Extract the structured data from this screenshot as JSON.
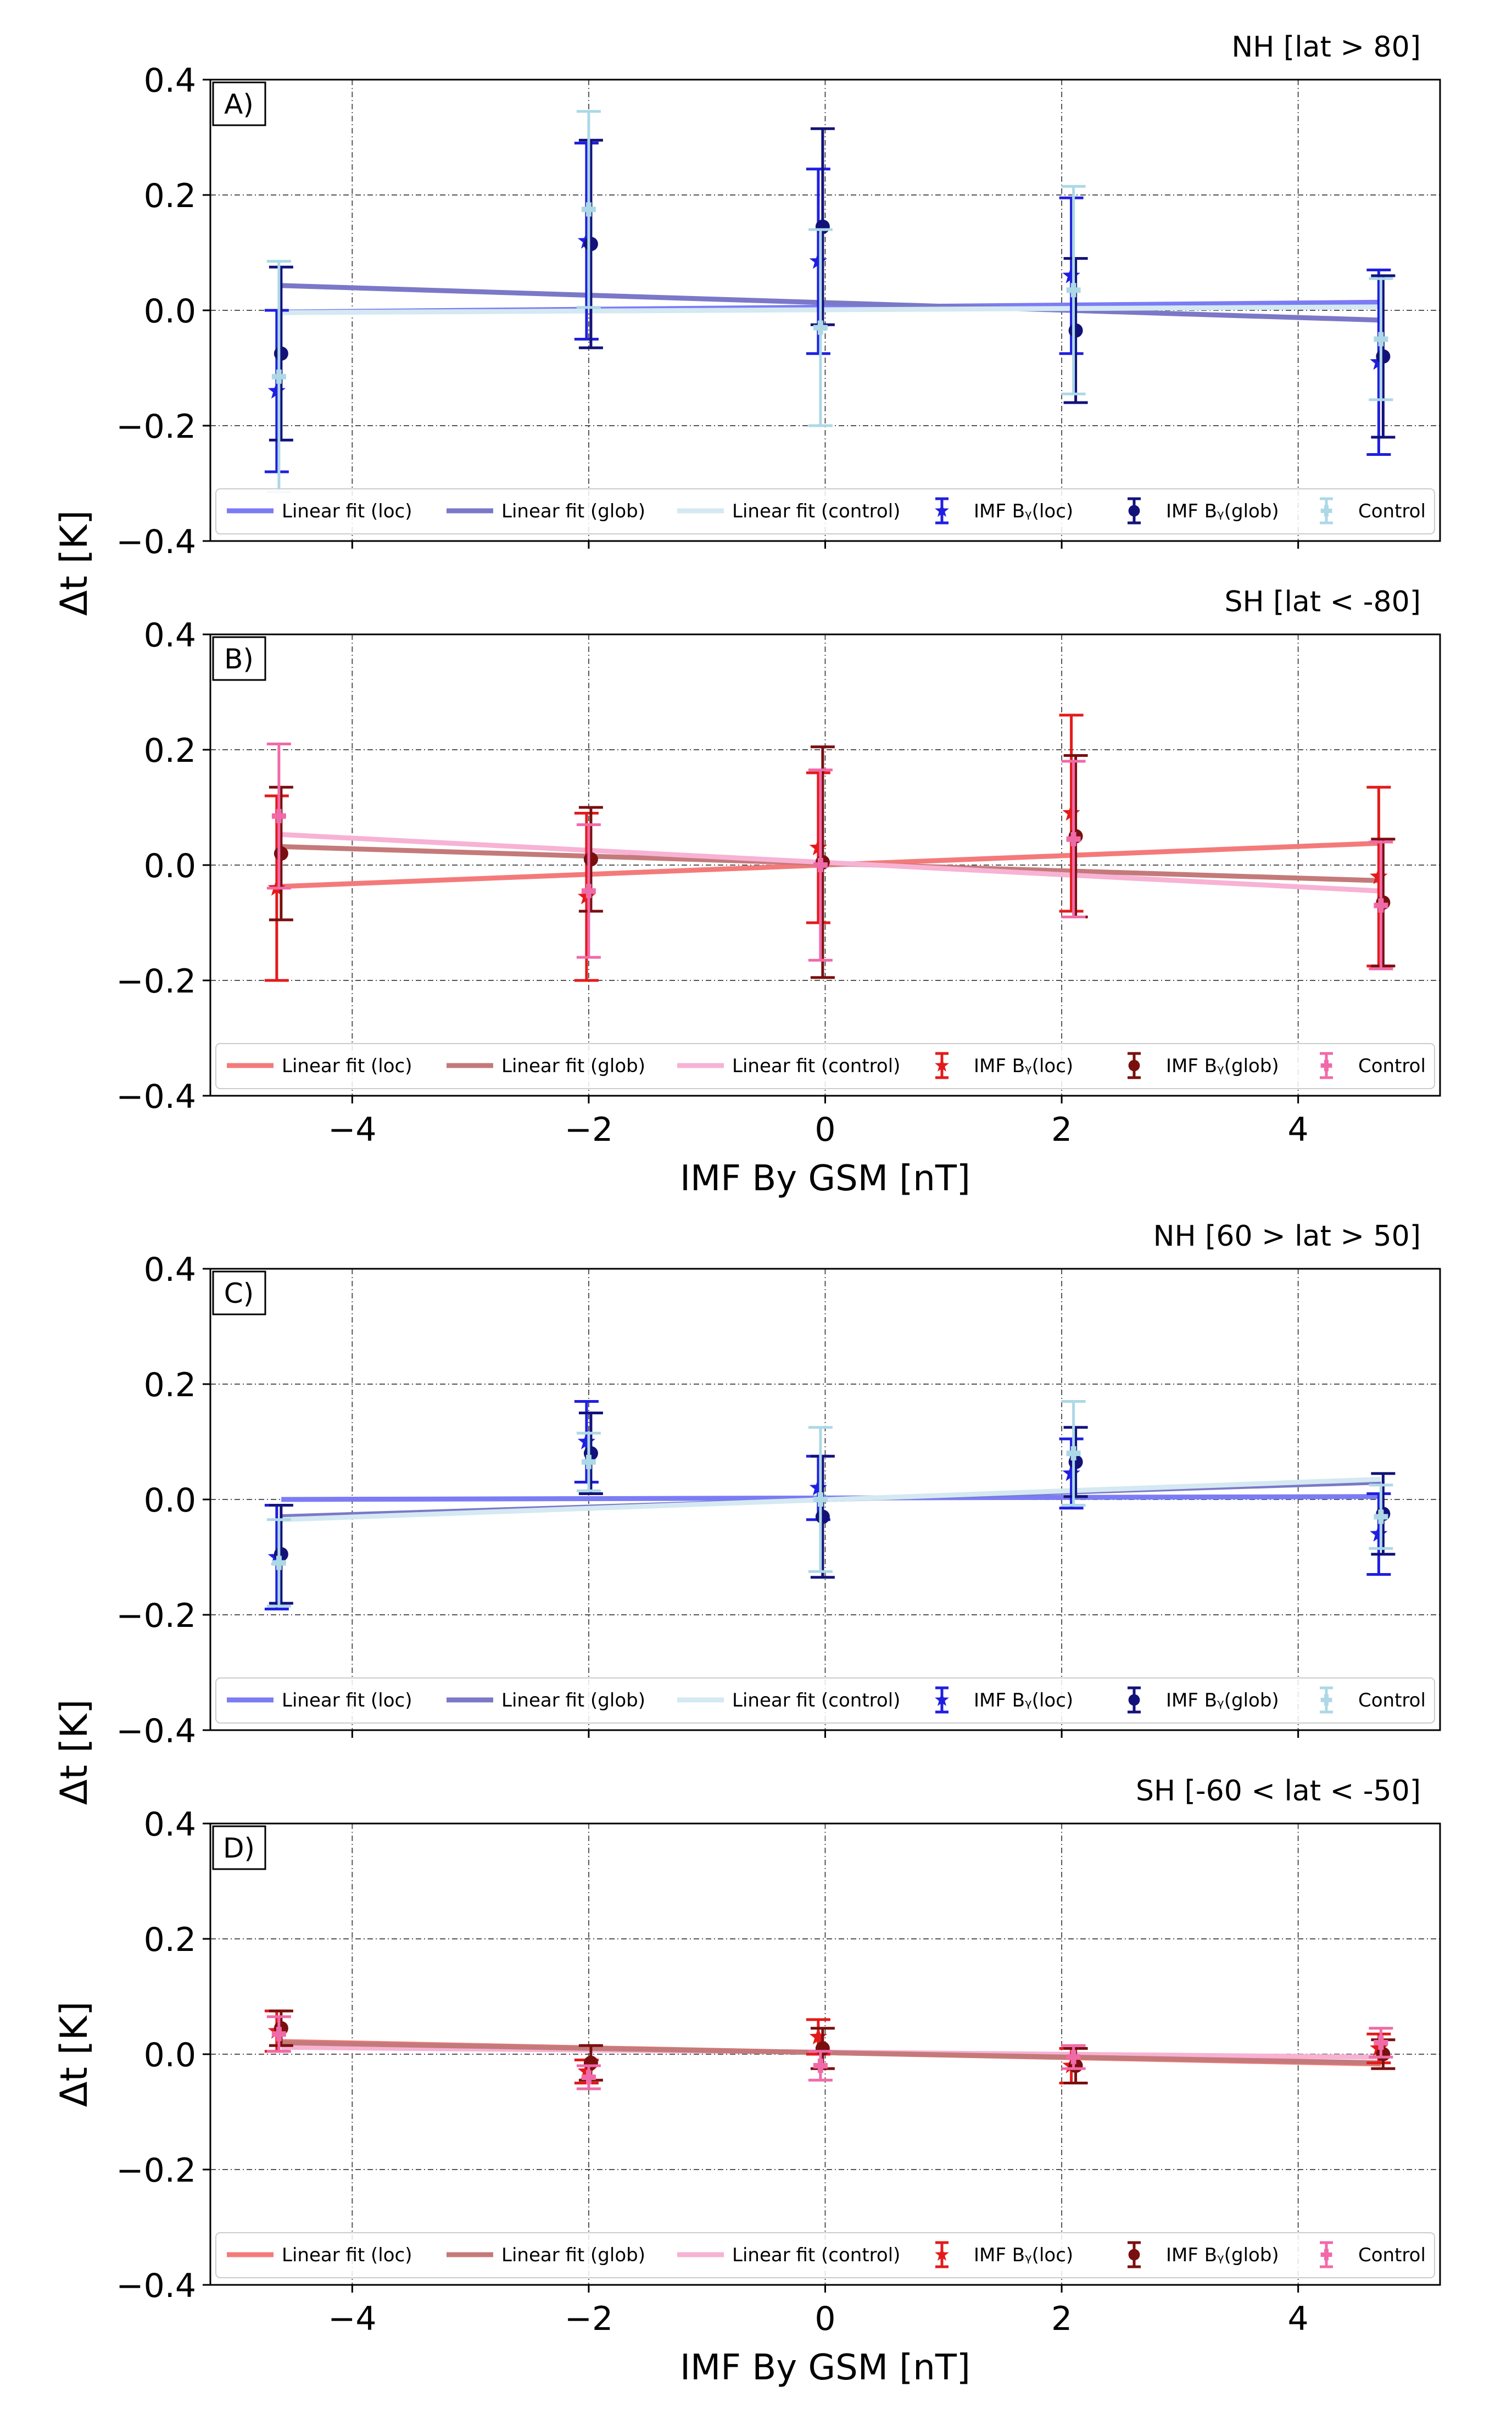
{
  "chart_data": [
    {
      "type": "scatter",
      "panel_label": "A)",
      "title": "NH [lat > 80]",
      "xlabel": "",
      "ylabel": "Δt [K]",
      "xlim": [
        -5.2,
        5.2
      ],
      "ylim": [
        -0.4,
        0.4
      ],
      "x_ticks": [],
      "x_tick_labels": [],
      "y_ticks": [
        -0.4,
        -0.2,
        0.0,
        0.2,
        0.4
      ],
      "y_tick_labels": [
        "−0.4",
        "−0.2",
        "0.0",
        "0.2",
        "0.4"
      ],
      "grid_x": [
        -4,
        -2,
        0,
        2,
        4
      ],
      "grid": true,
      "legend_position": "bottom",
      "legend": [
        {
          "label": "Linear fit (loc)",
          "kind": "line",
          "color": "#7b7cf5"
        },
        {
          "label": "Linear fit (glob)",
          "kind": "line",
          "color": "#7b78c8"
        },
        {
          "label": "Linear fit (control)",
          "kind": "line",
          "color": "#d4e9f2"
        },
        {
          "label": "IMF Bᵧ(loc)",
          "kind": "star",
          "color": "#1f1fe0"
        },
        {
          "label": "IMF Bᵧ(glob)",
          "kind": "circle",
          "color": "#12127a"
        },
        {
          "label": "Control",
          "kind": "plus",
          "color": "#add8e6"
        }
      ],
      "fits": [
        {
          "name": "Linear fit (loc)",
          "color": "#7b7cf5",
          "x": [
            -4.6,
            4.7
          ],
          "y": [
            -0.003,
            0.014
          ]
        },
        {
          "name": "Linear fit (glob)",
          "color": "#7b78c8",
          "x": [
            -4.6,
            4.7
          ],
          "y": [
            0.043,
            -0.017
          ]
        },
        {
          "name": "Linear fit (control)",
          "color": "#d4e9f2",
          "x": [
            -4.6,
            4.7
          ],
          "y": [
            -0.004,
            0.006
          ]
        }
      ],
      "series": [
        {
          "name": "IMF Bᵧ(loc)",
          "marker": "star",
          "color": "#1f1fe0",
          "x": [
            -4.62,
            -2.0,
            -0.04,
            2.1,
            4.7
          ],
          "y": [
            -0.14,
            0.12,
            0.085,
            0.06,
            -0.09
          ],
          "err": [
            0.14,
            0.17,
            0.16,
            0.135,
            0.16
          ]
        },
        {
          "name": "IMF Bᵧ(glob)",
          "marker": "circle",
          "color": "#12127a",
          "x": [
            -4.62,
            -2.0,
            -0.04,
            2.1,
            4.7
          ],
          "y": [
            -0.075,
            0.115,
            0.145,
            -0.035,
            -0.08
          ],
          "err": [
            0.15,
            0.18,
            0.17,
            0.125,
            0.14
          ]
        },
        {
          "name": "Control",
          "marker": "plus",
          "color": "#add8e6",
          "x": [
            -4.62,
            -2.0,
            -0.04,
            2.1,
            4.7
          ],
          "y": [
            -0.115,
            0.175,
            -0.03,
            0.035,
            -0.05
          ],
          "err": [
            0.2,
            0.17,
            0.17,
            0.18,
            0.105
          ]
        }
      ]
    },
    {
      "type": "scatter",
      "panel_label": "B)",
      "title": "SH [lat < -80]",
      "xlabel": "IMF By GSM [nT]",
      "ylabel": "",
      "xlim": [
        -5.2,
        5.2
      ],
      "ylim": [
        -0.4,
        0.4
      ],
      "x_ticks": [
        -4,
        -2,
        0,
        2,
        4
      ],
      "x_tick_labels": [
        "−4",
        "−2",
        "0",
        "2",
        "4"
      ],
      "y_ticks": [
        -0.4,
        -0.2,
        0.0,
        0.2,
        0.4
      ],
      "y_tick_labels": [
        "−0.4",
        "−0.2",
        "0.0",
        "0.2",
        "0.4"
      ],
      "grid_x": [
        -4,
        -2,
        0,
        2,
        4
      ],
      "grid": true,
      "legend_position": "bottom",
      "legend": [
        {
          "label": "Linear fit (loc)",
          "kind": "line",
          "color": "#f47a7a"
        },
        {
          "label": "Linear fit (glob)",
          "kind": "line",
          "color": "#c47a7a"
        },
        {
          "label": "Linear fit (control)",
          "kind": "line",
          "color": "#f7b2d4"
        },
        {
          "label": "IMF Bᵧ(loc)",
          "kind": "star",
          "color": "#e41a1a"
        },
        {
          "label": "IMF Bᵧ(glob)",
          "kind": "circle",
          "color": "#7a0f0f"
        },
        {
          "label": "Control",
          "kind": "plus",
          "color": "#f06aa8"
        }
      ],
      "fits": [
        {
          "name": "Linear fit (loc)",
          "color": "#f47a7a",
          "x": [
            -4.6,
            4.7
          ],
          "y": [
            -0.037,
            0.038
          ]
        },
        {
          "name": "Linear fit (glob)",
          "color": "#c47a7a",
          "x": [
            -4.6,
            4.7
          ],
          "y": [
            0.032,
            -0.027
          ]
        },
        {
          "name": "Linear fit (control)",
          "color": "#f7b2d4",
          "x": [
            -4.6,
            4.7
          ],
          "y": [
            0.053,
            -0.045
          ]
        }
      ],
      "series": [
        {
          "name": "IMF Bᵧ(loc)",
          "marker": "star",
          "color": "#e41a1a",
          "x": [
            -4.62,
            -2.0,
            -0.04,
            2.1,
            4.7
          ],
          "y": [
            -0.04,
            -0.055,
            0.03,
            0.09,
            -0.02
          ],
          "err": [
            0.16,
            0.145,
            0.13,
            0.17,
            0.155
          ]
        },
        {
          "name": "IMF Bᵧ(glob)",
          "marker": "circle",
          "color": "#7a0f0f",
          "x": [
            -4.62,
            -2.0,
            -0.04,
            2.1,
            4.7
          ],
          "y": [
            0.02,
            0.01,
            0.005,
            0.05,
            -0.065
          ],
          "err": [
            0.115,
            0.09,
            0.2,
            0.14,
            0.11
          ]
        },
        {
          "name": "Control",
          "marker": "plus",
          "color": "#f06aa8",
          "x": [
            -4.62,
            -2.0,
            -0.04,
            2.1,
            4.7
          ],
          "y": [
            0.085,
            -0.045,
            0.0,
            0.045,
            -0.07
          ],
          "err": [
            0.125,
            0.115,
            0.165,
            0.135,
            0.11
          ]
        }
      ]
    },
    {
      "type": "scatter",
      "panel_label": "C)",
      "title": "NH [60 > lat > 50]",
      "xlabel": "",
      "ylabel": "Δt [K]",
      "xlim": [
        -5.2,
        5.2
      ],
      "ylim": [
        -0.4,
        0.4
      ],
      "x_ticks": [],
      "x_tick_labels": [],
      "y_ticks": [
        -0.4,
        -0.2,
        0.0,
        0.2,
        0.4
      ],
      "y_tick_labels": [
        "−0.4",
        "−0.2",
        "0.0",
        "0.2",
        "0.4"
      ],
      "grid_x": [
        -4,
        -2,
        0,
        2,
        4
      ],
      "grid": true,
      "legend_position": "bottom",
      "legend": [
        {
          "label": "Linear fit (loc)",
          "kind": "line",
          "color": "#7b7cf5"
        },
        {
          "label": "Linear fit (glob)",
          "kind": "line",
          "color": "#7b78c8"
        },
        {
          "label": "Linear fit (control)",
          "kind": "line",
          "color": "#d4e9f2"
        },
        {
          "label": "IMF Bᵧ(loc)",
          "kind": "star",
          "color": "#1f1fe0"
        },
        {
          "label": "IMF Bᵧ(glob)",
          "kind": "circle",
          "color": "#12127a"
        },
        {
          "label": "Control",
          "kind": "plus",
          "color": "#add8e6"
        }
      ],
      "fits": [
        {
          "name": "Linear fit (loc)",
          "color": "#7b7cf5",
          "x": [
            -4.6,
            4.7
          ],
          "y": [
            0.0,
            0.005
          ]
        },
        {
          "name": "Linear fit (glob)",
          "color": "#7b78c8",
          "x": [
            -4.6,
            4.7
          ],
          "y": [
            -0.03,
            0.03
          ]
        },
        {
          "name": "Linear fit (control)",
          "color": "#d4e9f2",
          "x": [
            -4.6,
            4.7
          ],
          "y": [
            -0.035,
            0.035
          ]
        }
      ],
      "series": [
        {
          "name": "IMF Bᵧ(loc)",
          "marker": "star",
          "color": "#1f1fe0",
          "x": [
            -4.62,
            -2.0,
            -0.04,
            2.1,
            4.7
          ],
          "y": [
            -0.1,
            0.1,
            0.02,
            0.045,
            -0.06
          ],
          "err": [
            0.09,
            0.07,
            0.055,
            0.06,
            0.07
          ]
        },
        {
          "name": "IMF Bᵧ(glob)",
          "marker": "circle",
          "color": "#12127a",
          "x": [
            -4.62,
            -2.0,
            -0.04,
            2.1,
            4.7
          ],
          "y": [
            -0.095,
            0.08,
            -0.03,
            0.065,
            -0.025
          ],
          "err": [
            0.085,
            0.07,
            0.105,
            0.06,
            0.07
          ]
        },
        {
          "name": "Control",
          "marker": "plus",
          "color": "#add8e6",
          "x": [
            -4.62,
            -2.0,
            -0.04,
            2.1,
            4.7
          ],
          "y": [
            -0.11,
            0.065,
            0.0,
            0.08,
            -0.03
          ],
          "err": [
            0.075,
            0.05,
            0.125,
            0.09,
            0.055
          ]
        }
      ]
    },
    {
      "type": "scatter",
      "panel_label": "D)",
      "title": "SH [-60 < lat < -50]",
      "xlabel": "IMF By GSM [nT]",
      "ylabel": "Δt [K]",
      "xlim": [
        -5.2,
        5.2
      ],
      "ylim": [
        -0.4,
        0.4
      ],
      "x_ticks": [
        -4,
        -2,
        0,
        2,
        4
      ],
      "x_tick_labels": [
        "−4",
        "−2",
        "0",
        "2",
        "4"
      ],
      "y_ticks": [
        -0.4,
        -0.2,
        0.0,
        0.2,
        0.4
      ],
      "y_tick_labels": [
        "−0.4",
        "−0.2",
        "0.0",
        "0.2",
        "0.4"
      ],
      "grid_x": [
        -4,
        -2,
        0,
        2,
        4
      ],
      "grid": true,
      "legend_position": "bottom",
      "legend": [
        {
          "label": "Linear fit (loc)",
          "kind": "line",
          "color": "#f47a7a"
        },
        {
          "label": "Linear fit (glob)",
          "kind": "line",
          "color": "#c47a7a"
        },
        {
          "label": "Linear fit (control)",
          "kind": "line",
          "color": "#f7b2d4"
        },
        {
          "label": "IMF Bᵧ(loc)",
          "kind": "star",
          "color": "#e41a1a"
        },
        {
          "label": "IMF Bᵧ(glob)",
          "kind": "circle",
          "color": "#7a0f0f"
        },
        {
          "label": "Control",
          "kind": "plus",
          "color": "#f06aa8"
        }
      ],
      "fits": [
        {
          "name": "Linear fit (control)",
          "color": "#f7b2d4",
          "x": [
            -4.6,
            4.7
          ],
          "y": [
            0.012,
            -0.005
          ]
        },
        {
          "name": "Linear fit (loc)",
          "color": "#f47a7a",
          "x": [
            -4.6,
            4.7
          ],
          "y": [
            0.022,
            -0.017
          ]
        },
        {
          "name": "Linear fit (glob)",
          "color": "#c47a7a",
          "x": [
            -4.6,
            4.7
          ],
          "y": [
            0.02,
            -0.015
          ]
        }
      ],
      "series": [
        {
          "name": "IMF Bᵧ(loc)",
          "marker": "star",
          "color": "#e41a1a",
          "x": [
            -4.62,
            -2.0,
            -0.04,
            2.1,
            4.7
          ],
          "y": [
            0.04,
            -0.03,
            0.03,
            -0.02,
            0.01
          ],
          "err": [
            0.035,
            0.02,
            0.03,
            0.03,
            0.025
          ]
        },
        {
          "name": "IMF Bᵧ(glob)",
          "marker": "circle",
          "color": "#7a0f0f",
          "x": [
            -4.62,
            -2.0,
            -0.04,
            2.1,
            4.7
          ],
          "y": [
            0.045,
            -0.015,
            0.01,
            -0.02,
            0.0
          ],
          "err": [
            0.03,
            0.03,
            0.035,
            0.03,
            0.025
          ]
        },
        {
          "name": "Control",
          "marker": "plus",
          "color": "#f06aa8",
          "x": [
            -4.62,
            -2.0,
            -0.04,
            2.1,
            4.7
          ],
          "y": [
            0.035,
            -0.04,
            -0.02,
            -0.005,
            0.02
          ],
          "err": [
            0.03,
            0.02,
            0.025,
            0.02,
            0.025
          ]
        }
      ]
    }
  ]
}
